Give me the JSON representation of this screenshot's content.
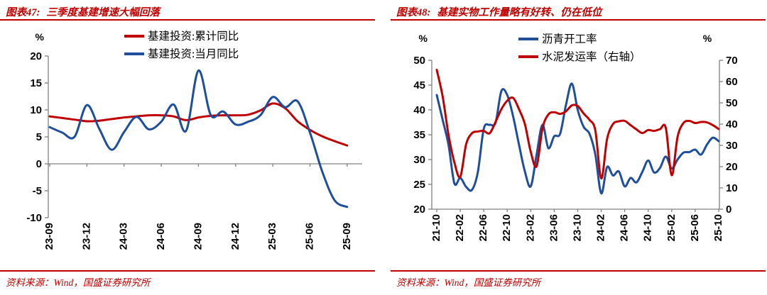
{
  "colors": {
    "red": "#C00000",
    "blue": "#1F4E9C",
    "axis": "#808080",
    "label": "#000000",
    "background": "#FFFFFF"
  },
  "panels": [
    {
      "figure_label": "图表47:",
      "title": "三季度基建增速大幅回落",
      "source": "资料来源：Wind，国盛证券研究所"
    },
    {
      "figure_label": "图表48:",
      "title": "基建实物工作量略有好转、仍在低位",
      "source": "资料来源：Wind，国盛证券研究所"
    }
  ],
  "chart_data": [
    {
      "type": "line",
      "title": "三季度基建增速大幅回落",
      "ylabel": "%",
      "ylim": [
        -10,
        20
      ],
      "yticks": [
        20,
        15,
        10,
        5,
        0,
        -5,
        -10
      ],
      "grid": false,
      "legend_position": "top",
      "x_tick_labels": [
        "23-09",
        "23-12",
        "24-03",
        "24-06",
        "24-09",
        "24-12",
        "25-03",
        "25-06",
        "25-09"
      ],
      "categories": [
        "23-09",
        "23-10",
        "23-11",
        "23-12",
        "24-01",
        "24-02",
        "24-03",
        "24-04",
        "24-05",
        "24-06",
        "24-07",
        "24-08",
        "24-09",
        "24-10",
        "24-11",
        "24-12",
        "25-01",
        "25-02",
        "25-03",
        "25-04",
        "25-05",
        "25-06",
        "25-07",
        "25-08",
        "25-09"
      ],
      "series": [
        {
          "name": "基建投资:累计同比",
          "color": "#C00000",
          "values": [
            8.8,
            8.5,
            8.2,
            7.9,
            8.0,
            8.3,
            8.6,
            8.8,
            9.0,
            9.0,
            8.8,
            8.1,
            8.6,
            8.9,
            9.0,
            9.0,
            9.1,
            9.9,
            11.2,
            10.3,
            7.9,
            6.3,
            5.1,
            4.2,
            3.4
          ]
        },
        {
          "name": "基建投资:当月同比",
          "color": "#1F4E9C",
          "values": [
            6.8,
            5.8,
            5.0,
            10.9,
            6.5,
            2.6,
            5.9,
            8.7,
            6.4,
            7.8,
            11.0,
            6.1,
            17.3,
            9.0,
            9.7,
            7.3,
            7.8,
            9.0,
            12.4,
            10.5,
            11.6,
            5.8,
            -1.5,
            -6.8,
            -8.0
          ]
        }
      ]
    },
    {
      "type": "line",
      "title": "基建实物工作量略有好转、仍在低位",
      "left_ylabel": "%",
      "right_ylabel": "%",
      "left_ylim": [
        20,
        50
      ],
      "right_ylim": [
        0,
        70
      ],
      "left_yticks": [
        50,
        45,
        40,
        35,
        30,
        25,
        20
      ],
      "right_yticks": [
        70,
        60,
        50,
        40,
        30,
        20,
        10,
        0
      ],
      "grid": false,
      "legend_position": "top",
      "x_tick_labels": [
        "21-10",
        "22-02",
        "22-06",
        "22-10",
        "23-02",
        "23-06",
        "23-10",
        "24-02",
        "24-06",
        "24-10",
        "25-02",
        "25-06",
        "25-10"
      ],
      "categories": [
        "21-10",
        "21-11",
        "21-12",
        "22-01",
        "22-02",
        "22-03",
        "22-04",
        "22-05",
        "22-06",
        "22-07",
        "22-08",
        "22-09",
        "22-10",
        "22-11",
        "22-12",
        "23-01",
        "23-02",
        "23-03",
        "23-04",
        "23-05",
        "23-06",
        "23-07",
        "23-08",
        "23-09",
        "23-10",
        "23-11",
        "23-12",
        "24-01",
        "24-02",
        "24-03",
        "24-04",
        "24-05",
        "24-06",
        "24-07",
        "24-08",
        "24-09",
        "24-10",
        "24-11",
        "24-12",
        "25-01",
        "25-02",
        "25-03",
        "25-04",
        "25-05",
        "25-06",
        "25-07",
        "25-08",
        "25-09",
        "25-10"
      ],
      "series": [
        {
          "name": "沥青开工率",
          "axis": "left",
          "color": "#1F4E9C",
          "values": [
            43.0,
            38.0,
            33.0,
            25.2,
            26.3,
            24.5,
            23.9,
            27.5,
            36.2,
            37.0,
            37.4,
            43.8,
            43.0,
            38.7,
            33.0,
            27.6,
            24.6,
            31.0,
            37.0,
            32.3,
            34.7,
            35.2,
            41.0,
            45.3,
            40.0,
            36.6,
            35.2,
            31.0,
            23.2,
            28.5,
            26.8,
            27.6,
            24.6,
            26.3,
            25.4,
            27.5,
            29.8,
            27.4,
            28.3,
            30.6,
            28.2,
            30.0,
            31.4,
            31.5,
            32.0,
            31.0,
            33.0,
            34.4,
            33.7
          ]
        },
        {
          "name": "水泥发运率（右轴）",
          "axis": "right",
          "color": "#C00000",
          "values": [
            65.5,
            53.0,
            35.0,
            22.0,
            15.2,
            30.5,
            35.7,
            36.5,
            36.8,
            35.7,
            41.0,
            47.0,
            51.0,
            52.3,
            47.0,
            40.0,
            27.0,
            20.2,
            38.0,
            44.5,
            45.6,
            44.8,
            46.0,
            48.8,
            48.5,
            45.0,
            42.0,
            37.0,
            14.5,
            33.0,
            40.0,
            41.3,
            41.5,
            39.5,
            37.5,
            35.8,
            37.2,
            36.8,
            37.6,
            38.2,
            16.0,
            34.0,
            40.5,
            41.5,
            40.5,
            41.0,
            40.8,
            39.5,
            37.7
          ]
        }
      ]
    }
  ]
}
